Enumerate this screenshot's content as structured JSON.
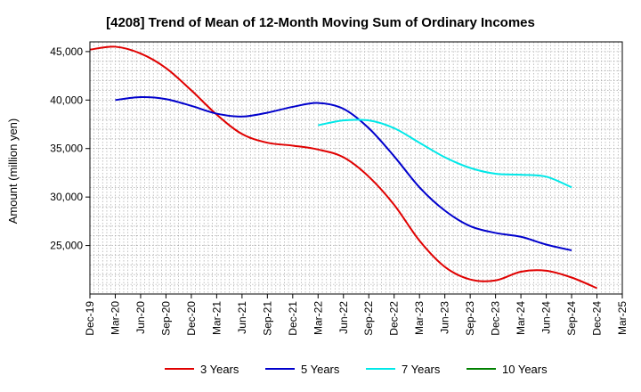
{
  "chart_data": {
    "type": "line",
    "title": "[4208]  Trend of Mean of 12-Month Moving Sum of Ordinary Incomes",
    "xlabel": "",
    "ylabel": "Amount (million yen)",
    "ylim": [
      20000,
      46000
    ],
    "y_ticks": [
      25000,
      30000,
      35000,
      40000,
      45000
    ],
    "y_tick_labels": [
      "25,000",
      "30,000",
      "35,000",
      "40,000",
      "45,000"
    ],
    "grid": true,
    "legend_position": "bottom",
    "x_ticks": [
      "Dec-19",
      "Mar-20",
      "Jun-20",
      "Sep-20",
      "Dec-20",
      "Mar-21",
      "Jun-21",
      "Sep-21",
      "Dec-21",
      "Mar-22",
      "Jun-22",
      "Sep-22",
      "Dec-22",
      "Mar-23",
      "Jun-23",
      "Sep-23",
      "Dec-23",
      "Mar-24",
      "Jun-24",
      "Sep-24",
      "Dec-24",
      "Mar-25"
    ],
    "series": [
      {
        "name": "3 Years",
        "color": "#e00000",
        "start_index": 0,
        "values": [
          45200,
          45500,
          44800,
          43300,
          41000,
          38500,
          36500,
          35600,
          35300,
          34900,
          34100,
          32100,
          29200,
          25500,
          22800,
          21500,
          21400,
          22300,
          22400,
          21700,
          20600
        ]
      },
      {
        "name": "5 Years",
        "color": "#0000cc",
        "start_index": 1,
        "values": [
          40000,
          40300,
          40100,
          39400,
          38600,
          38300,
          38700,
          39300,
          39700,
          39100,
          37100,
          34200,
          31000,
          28600,
          27000,
          26300,
          25900,
          25100,
          24500
        ]
      },
      {
        "name": "7 Years",
        "color": "#00e8e8",
        "start_index": 9,
        "values": [
          37400,
          37900,
          37900,
          37100,
          35600,
          34100,
          33000,
          32400,
          32300,
          32100,
          31000
        ]
      },
      {
        "name": "10 Years",
        "color": "#008000",
        "start_index": 0,
        "values": []
      }
    ]
  }
}
